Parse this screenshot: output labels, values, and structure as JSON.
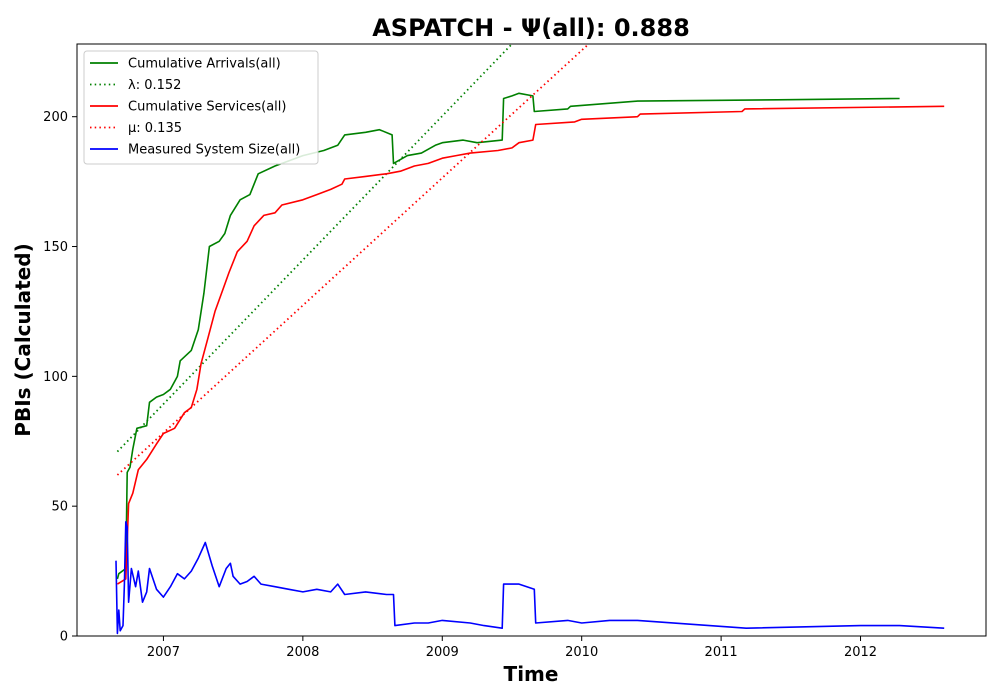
{
  "chart_data": {
    "type": "line",
    "title": "ASPATCH -  Ψ(all): 0.888",
    "xlabel": "Time",
    "ylabel": "PBIs (Calculated)",
    "xlim": [
      2006.38,
      2012.9
    ],
    "ylim": [
      0,
      228
    ],
    "xticks": [
      {
        "value": 2007,
        "label": "2007"
      },
      {
        "value": 2008,
        "label": "2008"
      },
      {
        "value": 2009,
        "label": "2009"
      },
      {
        "value": 2010,
        "label": "2010"
      },
      {
        "value": 2011,
        "label": "2011"
      },
      {
        "value": 2012,
        "label": "2012"
      }
    ],
    "yticks": [
      {
        "value": 0,
        "label": "0"
      },
      {
        "value": 50,
        "label": "50"
      },
      {
        "value": 100,
        "label": "100"
      },
      {
        "value": 150,
        "label": "150"
      },
      {
        "value": 200,
        "label": "200"
      }
    ],
    "grid": false,
    "legend_position": "top-left",
    "series": [
      {
        "name": "Cumulative Arrivals(all)",
        "color": "#008000",
        "style": "solid",
        "points": [
          [
            2006.67,
            22
          ],
          [
            2006.68,
            24
          ],
          [
            2006.73,
            26
          ],
          [
            2006.74,
            63
          ],
          [
            2006.76,
            65
          ],
          [
            2006.78,
            72
          ],
          [
            2006.81,
            80
          ],
          [
            2006.88,
            81
          ],
          [
            2006.9,
            90
          ],
          [
            2006.95,
            92
          ],
          [
            2007.0,
            93
          ],
          [
            2007.05,
            95
          ],
          [
            2007.1,
            100
          ],
          [
            2007.12,
            106
          ],
          [
            2007.2,
            110
          ],
          [
            2007.25,
            118
          ],
          [
            2007.29,
            132
          ],
          [
            2007.33,
            150
          ],
          [
            2007.4,
            152
          ],
          [
            2007.44,
            155
          ],
          [
            2007.48,
            162
          ],
          [
            2007.55,
            168
          ],
          [
            2007.62,
            170
          ],
          [
            2007.68,
            178
          ],
          [
            2007.8,
            181
          ],
          [
            2008.0,
            185
          ],
          [
            2008.15,
            187
          ],
          [
            2008.25,
            189
          ],
          [
            2008.3,
            193
          ],
          [
            2008.45,
            194
          ],
          [
            2008.55,
            195
          ],
          [
            2008.64,
            193
          ],
          [
            2008.65,
            182
          ],
          [
            2008.75,
            185
          ],
          [
            2008.85,
            186
          ],
          [
            2008.95,
            189
          ],
          [
            2009.0,
            190
          ],
          [
            2009.15,
            191
          ],
          [
            2009.25,
            190
          ],
          [
            2009.43,
            191
          ],
          [
            2009.44,
            207
          ],
          [
            2009.5,
            208
          ],
          [
            2009.55,
            209
          ],
          [
            2009.65,
            208
          ],
          [
            2009.66,
            202
          ],
          [
            2009.9,
            203
          ],
          [
            2009.92,
            204
          ],
          [
            2010.4,
            206
          ],
          [
            2011.4,
            206.5
          ],
          [
            2012.28,
            207
          ]
        ]
      },
      {
        "name": "λ: 0.152",
        "color": "#008000",
        "style": "dotted",
        "points": [
          [
            2006.67,
            71
          ],
          [
            2009.5,
            228
          ]
        ]
      },
      {
        "name": "Cumulative Services(all)",
        "color": "#ff0000",
        "style": "solid",
        "points": [
          [
            2006.67,
            20
          ],
          [
            2006.73,
            22
          ],
          [
            2006.75,
            51
          ],
          [
            2006.78,
            55
          ],
          [
            2006.82,
            64
          ],
          [
            2006.88,
            68
          ],
          [
            2006.95,
            74
          ],
          [
            2007.0,
            78
          ],
          [
            2007.08,
            80
          ],
          [
            2007.15,
            86
          ],
          [
            2007.2,
            88
          ],
          [
            2007.24,
            95
          ],
          [
            2007.27,
            105
          ],
          [
            2007.32,
            115
          ],
          [
            2007.37,
            125
          ],
          [
            2007.43,
            134
          ],
          [
            2007.47,
            140
          ],
          [
            2007.53,
            148
          ],
          [
            2007.6,
            152
          ],
          [
            2007.65,
            158
          ],
          [
            2007.72,
            162
          ],
          [
            2007.8,
            163
          ],
          [
            2007.85,
            166
          ],
          [
            2008.0,
            168
          ],
          [
            2008.1,
            170
          ],
          [
            2008.2,
            172
          ],
          [
            2008.28,
            174
          ],
          [
            2008.3,
            176
          ],
          [
            2008.45,
            177
          ],
          [
            2008.6,
            178
          ],
          [
            2008.7,
            179
          ],
          [
            2008.8,
            181
          ],
          [
            2008.9,
            182
          ],
          [
            2009.0,
            184
          ],
          [
            2009.1,
            185
          ],
          [
            2009.2,
            186
          ],
          [
            2009.4,
            187
          ],
          [
            2009.5,
            188
          ],
          [
            2009.55,
            190
          ],
          [
            2009.65,
            191
          ],
          [
            2009.67,
            197
          ],
          [
            2009.95,
            198
          ],
          [
            2010.0,
            199
          ],
          [
            2010.4,
            200
          ],
          [
            2010.42,
            201
          ],
          [
            2011.15,
            202
          ],
          [
            2011.17,
            203
          ],
          [
            2012.6,
            204
          ]
        ]
      },
      {
        "name": "μ: 0.135",
        "color": "#ff0000",
        "style": "dotted",
        "points": [
          [
            2006.67,
            62
          ],
          [
            2010.05,
            228
          ]
        ]
      },
      {
        "name": "Measured System Size(all)",
        "color": "#0000ff",
        "style": "solid",
        "points": [
          [
            2006.66,
            29
          ],
          [
            2006.67,
            1
          ],
          [
            2006.68,
            10
          ],
          [
            2006.69,
            2
          ],
          [
            2006.71,
            4
          ],
          [
            2006.72,
            20
          ],
          [
            2006.73,
            44
          ],
          [
            2006.74,
            42
          ],
          [
            2006.75,
            13
          ],
          [
            2006.77,
            26
          ],
          [
            2006.8,
            19
          ],
          [
            2006.82,
            25
          ],
          [
            2006.85,
            13
          ],
          [
            2006.88,
            17
          ],
          [
            2006.9,
            26
          ],
          [
            2006.95,
            18
          ],
          [
            2007.0,
            15
          ],
          [
            2007.05,
            19
          ],
          [
            2007.1,
            24
          ],
          [
            2007.15,
            22
          ],
          [
            2007.2,
            25
          ],
          [
            2007.25,
            30
          ],
          [
            2007.3,
            36
          ],
          [
            2007.35,
            27
          ],
          [
            2007.4,
            19
          ],
          [
            2007.45,
            26
          ],
          [
            2007.48,
            28
          ],
          [
            2007.5,
            23
          ],
          [
            2007.55,
            20
          ],
          [
            2007.6,
            21
          ],
          [
            2007.65,
            23
          ],
          [
            2007.7,
            20
          ],
          [
            2007.8,
            19
          ],
          [
            2007.9,
            18
          ],
          [
            2008.0,
            17
          ],
          [
            2008.1,
            18
          ],
          [
            2008.2,
            17
          ],
          [
            2008.25,
            20
          ],
          [
            2008.3,
            16
          ],
          [
            2008.45,
            17
          ],
          [
            2008.6,
            16
          ],
          [
            2008.65,
            16
          ],
          [
            2008.66,
            4
          ],
          [
            2008.8,
            5
          ],
          [
            2008.9,
            5
          ],
          [
            2009.0,
            6
          ],
          [
            2009.2,
            5
          ],
          [
            2009.3,
            4
          ],
          [
            2009.43,
            3
          ],
          [
            2009.44,
            20
          ],
          [
            2009.55,
            20
          ],
          [
            2009.66,
            18
          ],
          [
            2009.67,
            5
          ],
          [
            2009.9,
            6
          ],
          [
            2010.0,
            5
          ],
          [
            2010.2,
            6
          ],
          [
            2010.4,
            6
          ],
          [
            2011.18,
            3
          ],
          [
            2012.0,
            4
          ],
          [
            2012.28,
            4
          ],
          [
            2012.6,
            3
          ]
        ]
      }
    ]
  }
}
